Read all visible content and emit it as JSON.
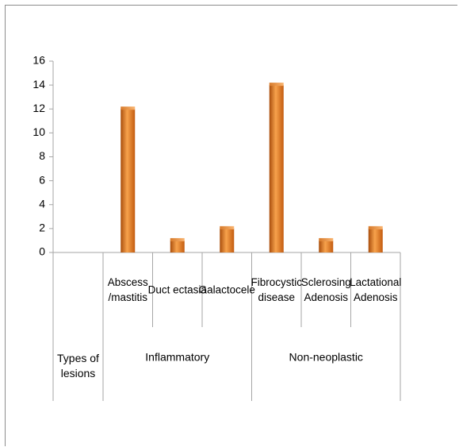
{
  "chart_data": {
    "type": "bar",
    "title": "",
    "xlabel": "",
    "ylabel": "",
    "ylim": [
      0,
      16
    ],
    "yticks": [
      "0",
      "2",
      "4",
      "6",
      "8",
      "10",
      "12",
      "14",
      "16"
    ],
    "legend": "none",
    "grid": false,
    "bar_color": "#e0781e",
    "corner_label": [
      "Types of",
      "lesions"
    ],
    "categories": [
      {
        "lines": [
          "Abscess",
          "/mastitis"
        ],
        "value": 12
      },
      {
        "lines": [
          "Duct ectasia"
        ],
        "value": 1
      },
      {
        "lines": [
          "Galactocele"
        ],
        "value": 2
      },
      {
        "lines": [
          "Fibrocystic",
          "disease"
        ],
        "value": 14
      },
      {
        "lines": [
          "Sclerosing",
          "Adenosis"
        ],
        "value": 1
      },
      {
        "lines": [
          "Lactational",
          "Adenosis"
        ],
        "value": 2
      }
    ],
    "groups": [
      {
        "label": "Inflammatory",
        "span": [
          0,
          2
        ]
      },
      {
        "label": "Non-neoplastic",
        "span": [
          3,
          5
        ]
      }
    ]
  }
}
